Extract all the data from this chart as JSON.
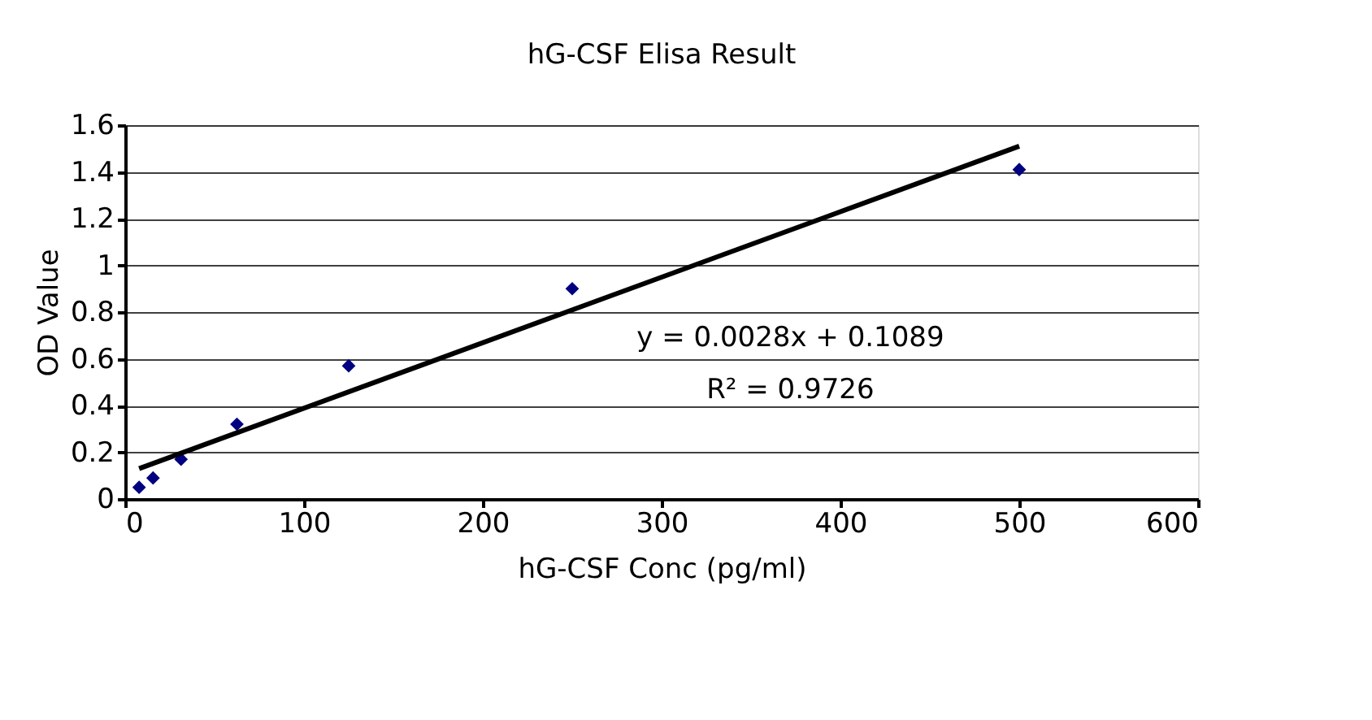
{
  "chart_data": {
    "type": "scatter",
    "title": "hG-CSF Elisa Result",
    "xlabel": "hG-CSF Conc (pg/ml)",
    "ylabel": "OD Value",
    "series": [
      {
        "color": "#000080",
        "marker": "diamond",
        "x": [
          7.8,
          15.6,
          31.25,
          62.5,
          125,
          250,
          500
        ],
        "values": [
          0.05,
          0.09,
          0.17,
          0.32,
          0.57,
          0.9,
          1.41
        ]
      },
      {
        "type": "line",
        "color": "#000000",
        "line_style": "solid",
        "x": [
          7.8,
          500
        ],
        "values": [
          0.13,
          1.51
        ]
      }
    ],
    "xlim": [
      0,
      600
    ],
    "xticks": [
      0,
      100,
      200,
      300,
      400,
      500,
      600
    ],
    "ylim": [
      0,
      1.6
    ],
    "yticks": [
      0,
      0.2,
      0.4,
      0.6,
      0.8,
      1,
      1.2,
      1.4,
      1.6
    ],
    "grid": "y",
    "annotations": [
      "y = 0.0028x + 0.1089",
      "R² = 0.9726"
    ]
  }
}
